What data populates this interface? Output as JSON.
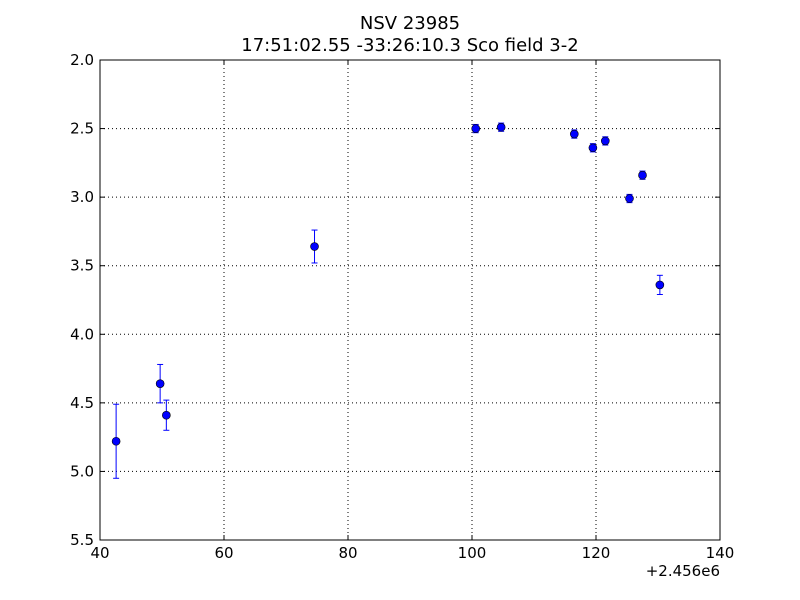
{
  "chart_data": {
    "type": "scatter",
    "title": "NSV 23985",
    "subtitle": "17:51:02.55 -33:26:10.3 Sco field 3-2",
    "xlabel": "",
    "ylabel": "",
    "x_offset_label": "+2.456e6",
    "xlim": [
      40,
      140
    ],
    "ylim": [
      2.0,
      5.5
    ],
    "y_inverted": true,
    "grid": true,
    "marker_color": "#0000ff",
    "x_ticks": [
      40,
      60,
      80,
      100,
      120,
      140
    ],
    "y_ticks": [
      2.0,
      2.5,
      3.0,
      3.5,
      4.0,
      4.5,
      5.0,
      5.5
    ],
    "x_tick_labels": [
      "40",
      "60",
      "80",
      "100",
      "120",
      "140"
    ],
    "y_tick_labels": [
      "2.0",
      "2.5",
      "3.0",
      "3.5",
      "4.0",
      "4.5",
      "5.0",
      "5.5"
    ],
    "points": [
      {
        "x": 42.6,
        "y": 4.78,
        "err": 0.27
      },
      {
        "x": 49.7,
        "y": 4.36,
        "err": 0.14
      },
      {
        "x": 50.7,
        "y": 4.59,
        "err": 0.11
      },
      {
        "x": 74.6,
        "y": 3.36,
        "err": 0.12
      },
      {
        "x": 100.6,
        "y": 2.5,
        "err": 0.03
      },
      {
        "x": 104.7,
        "y": 2.49,
        "err": 0.03
      },
      {
        "x": 116.5,
        "y": 2.54,
        "err": 0.03
      },
      {
        "x": 119.5,
        "y": 2.64,
        "err": 0.03
      },
      {
        "x": 121.5,
        "y": 2.59,
        "err": 0.03
      },
      {
        "x": 125.4,
        "y": 3.01,
        "err": 0.03
      },
      {
        "x": 127.5,
        "y": 2.84,
        "err": 0.03
      },
      {
        "x": 130.3,
        "y": 3.64,
        "err": 0.07
      }
    ]
  }
}
